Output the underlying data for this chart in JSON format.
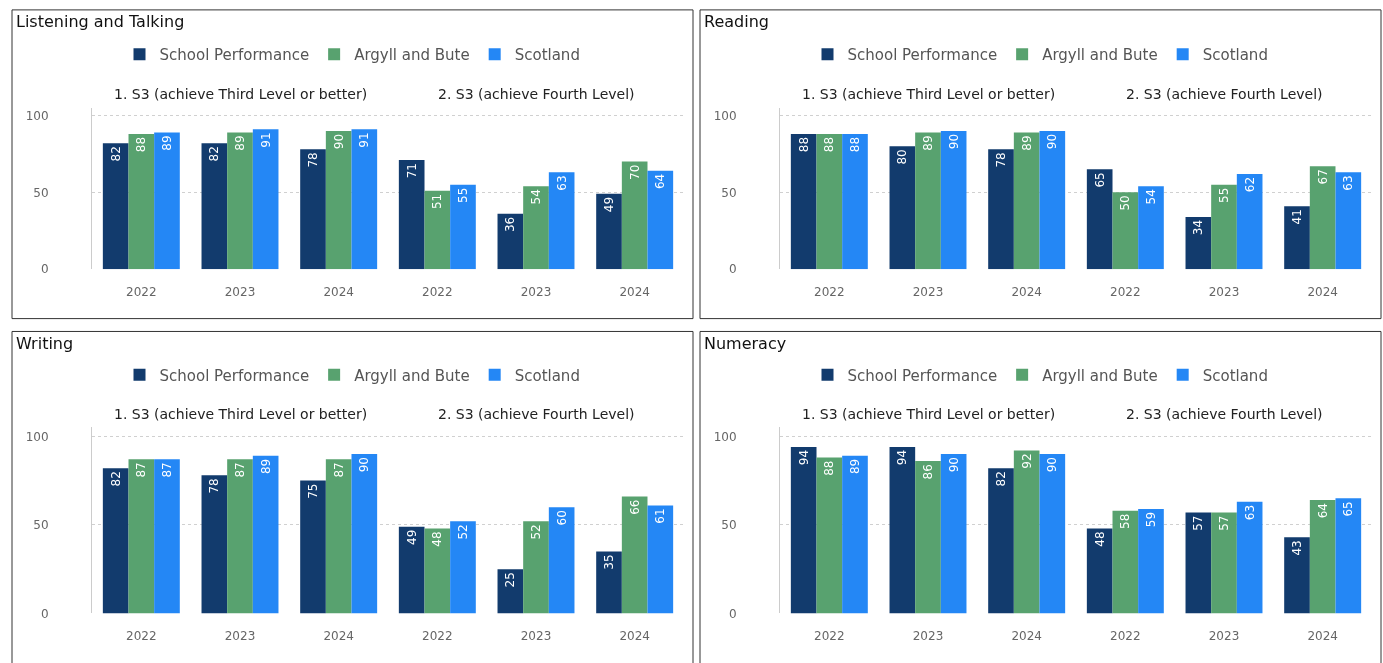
{
  "chart_data": [
    {
      "type": "bar",
      "title": "Listening and Talking",
      "annotations": [
        "1. S3 (achieve Third Level or better)",
        "2. S3 (achieve Fourth Level)"
      ],
      "categories": [
        "2022",
        "2023",
        "2024",
        "2022",
        "2023",
        "2024"
      ],
      "series": [
        {
          "name": "School Performance",
          "color": "#123b6d",
          "values": [
            82,
            82,
            78,
            71,
            36,
            49
          ]
        },
        {
          "name": "Argyll and Bute",
          "color": "#58a26f",
          "values": [
            88,
            89,
            90,
            51,
            54,
            70
          ]
        },
        {
          "name": "Scotland",
          "color": "#2487f5",
          "values": [
            89,
            91,
            91,
            55,
            63,
            64
          ]
        }
      ],
      "ylim": [
        0,
        105
      ],
      "yticks": [
        0,
        50,
        100
      ],
      "grid": "y",
      "legend": "top",
      "data_labels": true
    },
    {
      "type": "bar",
      "title": "Reading",
      "annotations": [
        "1. S3 (achieve Third Level or better)",
        "2. S3 (achieve Fourth Level)"
      ],
      "categories": [
        "2022",
        "2023",
        "2024",
        "2022",
        "2023",
        "2024"
      ],
      "series": [
        {
          "name": "School Performance",
          "color": "#123b6d",
          "values": [
            88,
            80,
            78,
            65,
            34,
            41
          ]
        },
        {
          "name": "Argyll and Bute",
          "color": "#58a26f",
          "values": [
            88,
            89,
            89,
            50,
            55,
            67
          ]
        },
        {
          "name": "Scotland",
          "color": "#2487f5",
          "values": [
            88,
            90,
            90,
            54,
            62,
            63
          ]
        }
      ],
      "ylim": [
        0,
        105
      ],
      "yticks": [
        0,
        50,
        100
      ],
      "grid": "y",
      "legend": "top",
      "data_labels": true
    },
    {
      "type": "bar",
      "title": "Writing",
      "annotations": [
        "1. S3 (achieve Third Level or better)",
        "2. S3 (achieve Fourth Level)"
      ],
      "categories": [
        "2022",
        "2023",
        "2024",
        "2022",
        "2023",
        "2024"
      ],
      "series": [
        {
          "name": "School Performance",
          "color": "#123b6d",
          "values": [
            82,
            78,
            75,
            49,
            25,
            35
          ]
        },
        {
          "name": "Argyll and Bute",
          "color": "#58a26f",
          "values": [
            87,
            87,
            87,
            48,
            52,
            66
          ]
        },
        {
          "name": "Scotland",
          "color": "#2487f5",
          "values": [
            87,
            89,
            90,
            52,
            60,
            61
          ]
        }
      ],
      "ylim": [
        0,
        105
      ],
      "yticks": [
        0,
        50,
        100
      ],
      "grid": "y",
      "legend": "top",
      "data_labels": true
    },
    {
      "type": "bar",
      "title": "Numeracy",
      "annotations": [
        "1. S3 (achieve Third Level or better)",
        "2. S3 (achieve Fourth Level)"
      ],
      "categories": [
        "2022",
        "2023",
        "2024",
        "2022",
        "2023",
        "2024"
      ],
      "series": [
        {
          "name": "School Performance",
          "color": "#123b6d",
          "values": [
            94,
            94,
            82,
            48,
            57,
            43
          ]
        },
        {
          "name": "Argyll and Bute",
          "color": "#58a26f",
          "values": [
            88,
            86,
            92,
            58,
            57,
            64
          ]
        },
        {
          "name": "Scotland",
          "color": "#2487f5",
          "values": [
            89,
            90,
            90,
            59,
            63,
            65
          ]
        }
      ],
      "ylim": [
        0,
        105
      ],
      "yticks": [
        0,
        50,
        100
      ],
      "grid": "y",
      "legend": "top",
      "data_labels": true
    }
  ]
}
